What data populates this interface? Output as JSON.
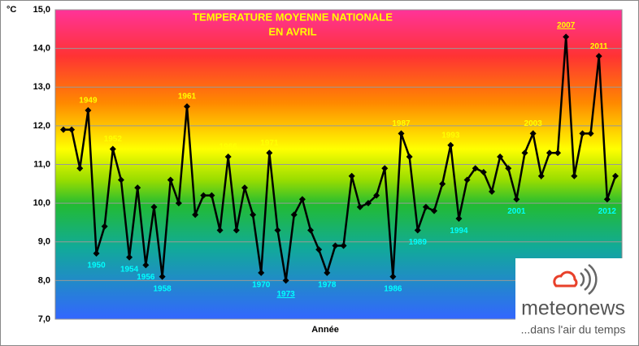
{
  "chart_data": {
    "type": "line",
    "title": "TEMPERATURE MOYENNE NATIONALE",
    "subtitle": "EN AVRIL",
    "y_axis_label": "°C",
    "x_axis_label": "Année",
    "x": [
      1946,
      1947,
      1948,
      1949,
      1950,
      1951,
      1952,
      1953,
      1954,
      1955,
      1956,
      1957,
      1958,
      1959,
      1960,
      1961,
      1962,
      1963,
      1964,
      1965,
      1966,
      1967,
      1968,
      1969,
      1970,
      1971,
      1972,
      1973,
      1974,
      1975,
      1976,
      1977,
      1978,
      1979,
      1980,
      1981,
      1982,
      1983,
      1984,
      1985,
      1986,
      1987,
      1988,
      1989,
      1990,
      1991,
      1992,
      1993,
      1994,
      1995,
      1996,
      1997,
      1998,
      1999,
      2000,
      2001,
      2002,
      2003,
      2004,
      2005,
      2006,
      2007,
      2008,
      2009,
      2010,
      2011,
      2012,
      2013
    ],
    "series": [
      {
        "color": "#000000",
        "values": [
          11.9,
          11.9,
          10.9,
          12.4,
          8.7,
          9.4,
          11.4,
          10.6,
          8.6,
          10.4,
          8.4,
          9.9,
          8.1,
          10.6,
          10.0,
          12.5,
          9.7,
          10.2,
          10.2,
          9.3,
          11.2,
          9.3,
          10.4,
          9.7,
          8.2,
          11.3,
          9.3,
          8.0,
          9.7,
          10.1,
          9.3,
          8.8,
          8.2,
          8.9,
          8.9,
          10.7,
          9.9,
          10.0,
          10.2,
          10.9,
          8.1,
          11.8,
          11.2,
          9.3,
          9.9,
          9.8,
          10.5,
          11.5,
          9.6,
          10.6,
          10.9,
          10.8,
          10.3,
          11.2,
          10.9,
          10.1,
          11.3,
          11.8,
          10.7,
          11.3,
          11.3,
          14.3,
          10.7,
          11.8,
          11.8,
          13.8,
          10.1,
          10.7
        ]
      }
    ],
    "xlim": [
      1946,
      2013
    ],
    "ylim": [
      7,
      15
    ],
    "yticks": [
      {
        "value": 7,
        "label": "7,0"
      },
      {
        "value": 8,
        "label": "8,0"
      },
      {
        "value": 9,
        "label": "9,0"
      },
      {
        "value": 10,
        "label": "10,0"
      },
      {
        "value": 11,
        "label": "11,0"
      },
      {
        "value": 12,
        "label": "12,0"
      },
      {
        "value": 13,
        "label": "13,0"
      },
      {
        "value": 14,
        "label": "14,0"
      },
      {
        "value": 15,
        "label": "15,0"
      }
    ],
    "grid": true,
    "annotations": [
      {
        "text": "1949",
        "x": 1949,
        "position": "above"
      },
      {
        "text": "1950",
        "x": 1950,
        "position": "below"
      },
      {
        "text": "1952",
        "x": 1952,
        "position": "above"
      },
      {
        "text": "1954",
        "x": 1954,
        "position": "below"
      },
      {
        "text": "1956",
        "x": 1956,
        "position": "below"
      },
      {
        "text": "1958",
        "x": 1958,
        "position": "below"
      },
      {
        "text": "1961",
        "x": 1961,
        "position": "above"
      },
      {
        "text": "1966",
        "x": 1966,
        "position": "above"
      },
      {
        "text": "1970",
        "x": 1970,
        "position": "below"
      },
      {
        "text": "1971",
        "x": 1971,
        "position": "above"
      },
      {
        "text": "1973",
        "x": 1973,
        "position": "below",
        "highlight": true
      },
      {
        "text": "1978",
        "x": 1978,
        "position": "below"
      },
      {
        "text": "1986",
        "x": 1986,
        "position": "below"
      },
      {
        "text": "1987",
        "x": 1987,
        "position": "above"
      },
      {
        "text": "1989",
        "x": 1989,
        "position": "below"
      },
      {
        "text": "1993",
        "x": 1993,
        "position": "above"
      },
      {
        "text": "1994",
        "x": 1994,
        "position": "below"
      },
      {
        "text": "2001",
        "x": 2001,
        "position": "below"
      },
      {
        "text": "2003",
        "x": 2003,
        "position": "above"
      },
      {
        "text": "2007",
        "x": 2007,
        "position": "above",
        "highlight": true
      },
      {
        "text": "2011",
        "x": 2011,
        "position": "above"
      },
      {
        "text": "2012",
        "x": 2012,
        "position": "below"
      }
    ]
  },
  "logo": {
    "name": "meteonews",
    "tagline": "...dans l'air du temps"
  }
}
